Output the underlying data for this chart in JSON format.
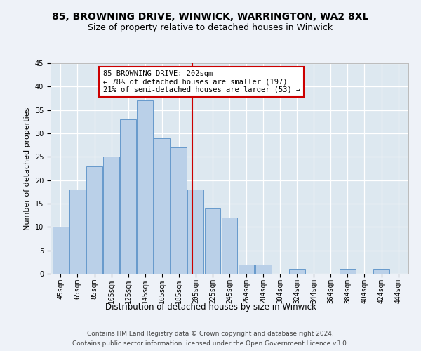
{
  "title1": "85, BROWNING DRIVE, WINWICK, WARRINGTON, WA2 8XL",
  "title2": "Size of property relative to detached houses in Winwick",
  "xlabel": "Distribution of detached houses by size in Winwick",
  "ylabel": "Number of detached properties",
  "footer1": "Contains HM Land Registry data © Crown copyright and database right 2024.",
  "footer2": "Contains public sector information licensed under the Open Government Licence v3.0.",
  "bin_labels": [
    "45sqm",
    "65sqm",
    "85sqm",
    "105sqm",
    "125sqm",
    "145sqm",
    "165sqm",
    "185sqm",
    "205sqm",
    "225sqm",
    "245sqm",
    "264sqm",
    "284sqm",
    "304sqm",
    "324sqm",
    "344sqm",
    "364sqm",
    "384sqm",
    "404sqm",
    "424sqm",
    "444sqm"
  ],
  "values": [
    10,
    18,
    23,
    25,
    33,
    37,
    29,
    27,
    18,
    14,
    12,
    2,
    2,
    0,
    1,
    0,
    0,
    1,
    0,
    1,
    0
  ],
  "bar_color": "#bad0e8",
  "bar_edge_color": "#6699cc",
  "vline_color": "#cc0000",
  "annotation_box_color": "#ffffff",
  "annotation_box_edge": "#cc0000",
  "annotation_text_line1": "85 BROWNING DRIVE: 202sqm",
  "annotation_text_line2": "← 78% of detached houses are smaller (197)",
  "annotation_text_line3": "21% of semi-detached houses are larger (53) →",
  "ylim": [
    0,
    45
  ],
  "yticks": [
    0,
    5,
    10,
    15,
    20,
    25,
    30,
    35,
    40,
    45
  ],
  "background_color": "#dde8f0",
  "grid_color": "#ffffff",
  "title1_fontsize": 10,
  "title2_fontsize": 9,
  "xlabel_fontsize": 8.5,
  "ylabel_fontsize": 8,
  "tick_fontsize": 7,
  "footer_fontsize": 6.5,
  "annotation_fontsize": 7.5,
  "vline_x_index": 7.78
}
